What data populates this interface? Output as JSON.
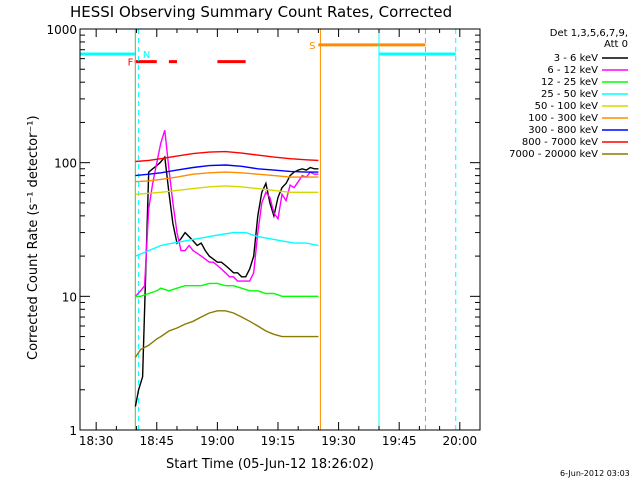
{
  "chart_data": {
    "type": "line",
    "title": "HESSI Observing Summary Count Rates, Corrected",
    "xlabel": "Start Time (05-Jun-12 18:26:02)",
    "ylabel": "Corrected Count Rate (s⁻¹ detector⁻¹)",
    "x_unit": "minutes after 18:26:02",
    "xlim": [
      0,
      99
    ],
    "ylim": [
      1,
      1000
    ],
    "y_scale": "log",
    "x_tick_labels": [
      {
        "x": 4,
        "label": "18:30"
      },
      {
        "x": 19,
        "label": "18:45"
      },
      {
        "x": 34,
        "label": "19:00"
      },
      {
        "x": 49,
        "label": "19:15"
      },
      {
        "x": 64,
        "label": "19:30"
      },
      {
        "x": 79,
        "label": "19:45"
      },
      {
        "x": 94,
        "label": "20:00"
      }
    ],
    "y_tick_labels": [
      {
        "y": 1,
        "label": "1"
      },
      {
        "y": 10,
        "label": "10"
      },
      {
        "y": 100,
        "label": "100"
      },
      {
        "y": 1000,
        "label": "1000"
      }
    ],
    "legend": {
      "header": [
        "Det 1,3,5,6,7,9,",
        "Att 0"
      ],
      "placement": "right"
    },
    "series": [
      {
        "name": "3 - 6 keV",
        "color": "#000000",
        "x": [
          13.7,
          14.5,
          15.5,
          17,
          18,
          19,
          19.8,
          21,
          22,
          23,
          24,
          25,
          26,
          27,
          28,
          29,
          30,
          31,
          32,
          33,
          34,
          35,
          36,
          37,
          38,
          39,
          40,
          41,
          42,
          43,
          44,
          45,
          46,
          47,
          48,
          49,
          50,
          51,
          52,
          53,
          54,
          55,
          56,
          57,
          58,
          59
        ],
        "y": [
          1.5,
          2,
          2.5,
          85,
          90,
          95,
          100,
          110,
          60,
          35,
          25,
          27,
          30,
          28,
          26,
          24,
          25,
          22,
          20,
          19,
          18,
          18,
          17,
          16,
          15,
          15,
          14,
          14,
          16,
          20,
          40,
          60,
          70,
          50,
          40,
          55,
          65,
          70,
          80,
          85,
          88,
          90,
          88,
          92,
          90,
          90
        ]
      },
      {
        "name": "6 - 12 keV",
        "color": "#ff00ff",
        "x": [
          13.7,
          15,
          16,
          17,
          18,
          19,
          20,
          21,
          22,
          23,
          24,
          25,
          26,
          27,
          28,
          29,
          30,
          31,
          32,
          33,
          34,
          35,
          36,
          37,
          38,
          39,
          40,
          41,
          42,
          43,
          44,
          45,
          46,
          47,
          48,
          49,
          50,
          51,
          52,
          53,
          54,
          55,
          56,
          57,
          58,
          59
        ],
        "y": [
          10,
          11,
          12,
          45,
          70,
          100,
          140,
          175,
          90,
          50,
          30,
          22,
          22,
          24,
          22,
          21,
          20,
          19,
          18,
          18,
          17,
          16,
          15,
          14,
          14,
          13,
          13,
          13,
          13,
          15,
          30,
          50,
          60,
          55,
          42,
          38,
          58,
          52,
          68,
          65,
          72,
          80,
          78,
          85,
          82,
          82
        ]
      },
      {
        "name": "12 - 25 keV",
        "color": "#00ff00",
        "x": [
          13.7,
          15,
          17,
          19,
          20,
          22,
          24,
          26,
          28,
          30,
          32,
          34,
          36,
          38,
          40,
          42,
          44,
          46,
          48,
          50,
          52,
          54,
          56,
          58,
          59
        ],
        "y": [
          10,
          10,
          10.5,
          11,
          11.5,
          11,
          11.5,
          12,
          12,
          12,
          12.5,
          12.5,
          12,
          12,
          11.5,
          11,
          11,
          10.5,
          10.5,
          10,
          10,
          10,
          10,
          10,
          10
        ]
      },
      {
        "name": "25 - 50 keV",
        "color": "#00ffff",
        "x": [
          13.7,
          17,
          20,
          23,
          26,
          29,
          32,
          35,
          38,
          41,
          44,
          47,
          50,
          53,
          56,
          59
        ],
        "y": [
          20,
          22,
          24,
          25,
          26,
          27,
          28,
          29,
          30,
          30,
          28,
          27,
          26,
          25,
          25,
          24
        ]
      },
      {
        "name": "50 - 100 keV",
        "color": "#d7d700",
        "x": [
          13.7,
          17,
          20,
          24,
          28,
          32,
          36,
          40,
          44,
          48,
          52,
          56,
          59
        ],
        "y": [
          58,
          59,
          60,
          62,
          64,
          66,
          67,
          66,
          64,
          62,
          60,
          60,
          60
        ]
      },
      {
        "name": "100 - 300 keV",
        "color": "#ff8c00",
        "x": [
          13.7,
          17,
          20,
          24,
          28,
          32,
          36,
          40,
          44,
          48,
          52,
          56,
          59
        ],
        "y": [
          72,
          73,
          75,
          78,
          82,
          84,
          85,
          84,
          82,
          80,
          78,
          78,
          78
        ]
      },
      {
        "name": "300 - 800 keV",
        "color": "#0000ff",
        "x": [
          13.7,
          17,
          20,
          24,
          28,
          32,
          36,
          40,
          44,
          48,
          52,
          56,
          59
        ],
        "y": [
          80,
          82,
          84,
          88,
          92,
          95,
          96,
          94,
          90,
          88,
          86,
          85,
          85
        ]
      },
      {
        "name": "800 - 7000 keV",
        "color": "#ff0000",
        "x": [
          13.7,
          17,
          20,
          24,
          28,
          32,
          36,
          40,
          44,
          48,
          52,
          56,
          59
        ],
        "y": [
          102,
          104,
          107,
          112,
          117,
          120,
          121,
          118,
          114,
          110,
          107,
          105,
          104
        ]
      },
      {
        "name": "7000 - 20000 keV",
        "color": "#8b7a00",
        "x": [
          13.7,
          15,
          17,
          19,
          20,
          22,
          24,
          26,
          28,
          30,
          32,
          34,
          36,
          38,
          40,
          42,
          44,
          46,
          48,
          50,
          52,
          54,
          56,
          58,
          59
        ],
        "y": [
          3.5,
          4,
          4.3,
          4.8,
          5,
          5.5,
          5.8,
          6.2,
          6.5,
          7,
          7.5,
          7.8,
          7.8,
          7.5,
          7,
          6.5,
          6,
          5.5,
          5.2,
          5,
          5,
          5,
          5,
          5,
          5
        ]
      }
    ],
    "flag_markers": [
      {
        "label": "F",
        "color": "#ff0000"
      },
      {
        "label": "N",
        "color": "#00ffff"
      },
      {
        "label": "S",
        "color": "#ff8c00"
      }
    ],
    "flag_bars": [
      {
        "flag": "N",
        "color": "#00ffff",
        "y": 650,
        "x": [
          [
            0,
            13.7
          ],
          [
            74,
            93
          ]
        ]
      },
      {
        "flag": "F",
        "color": "#ff0000",
        "y": 570,
        "x": [
          [
            13.5,
            19
          ],
          [
            22,
            24
          ],
          [
            34,
            41
          ]
        ]
      },
      {
        "flag": "S",
        "color": "#ff8c00",
        "y": 760,
        "x": [
          [
            59,
            85.5
          ]
        ]
      }
    ],
    "vertical_lines": [
      {
        "x": 13.7,
        "color": "#00ffff",
        "style": "solid"
      },
      {
        "x": 13.7,
        "color": "#ff8c00",
        "style": "solid"
      },
      {
        "x": 14.5,
        "color": "#00ffff",
        "style": "dashed"
      },
      {
        "x": 59.5,
        "color": "#ff8c00",
        "style": "solid"
      },
      {
        "x": 74,
        "color": "#00ffff",
        "style": "solid"
      },
      {
        "x": 85.5,
        "color": "#ff8c00",
        "style": "dashed"
      },
      {
        "x": 93,
        "color": "#00ffff",
        "style": "dashed"
      }
    ],
    "grid": false
  },
  "footer": {
    "date_stamp": "6-Jun-2012 03:03"
  }
}
